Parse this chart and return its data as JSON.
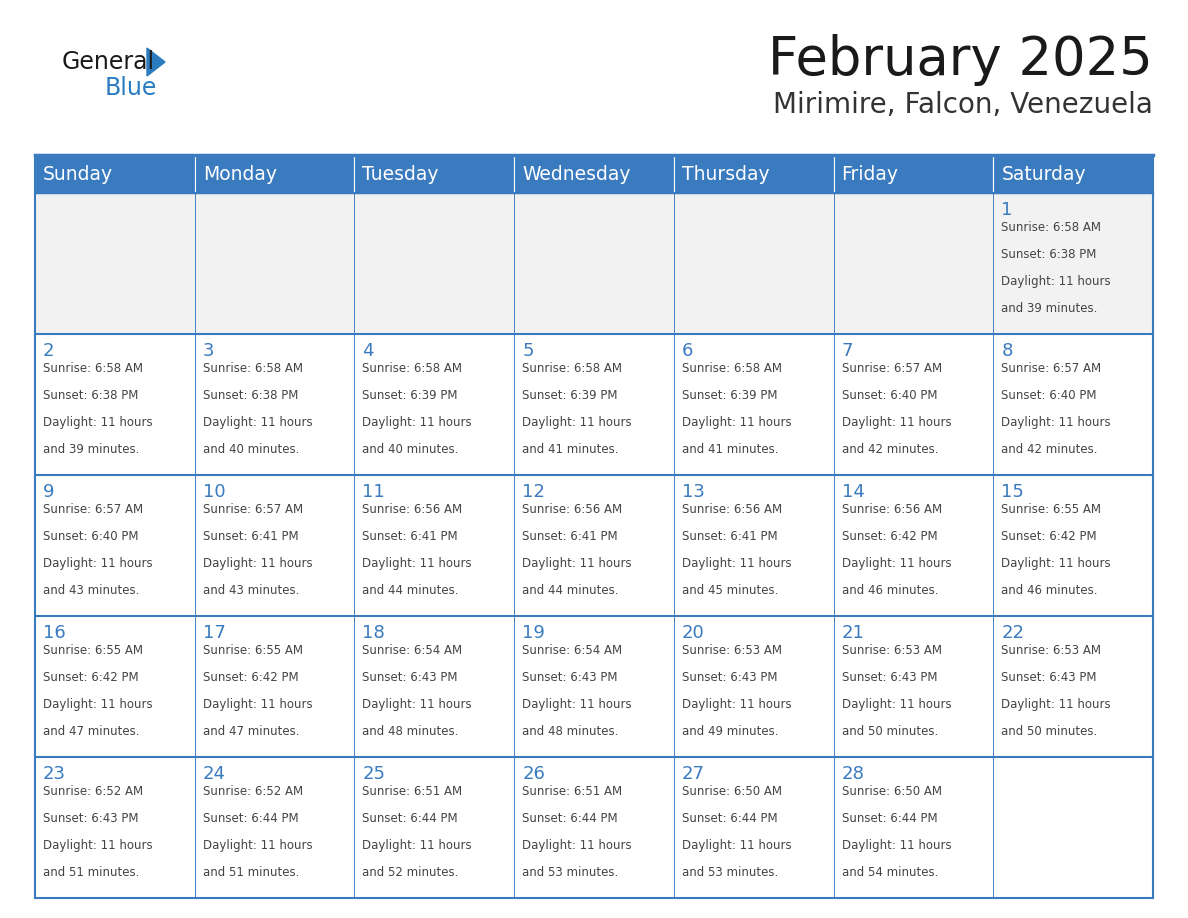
{
  "title": "February 2025",
  "subtitle": "Mirimire, Falcon, Venezuela",
  "days_of_week": [
    "Sunday",
    "Monday",
    "Tuesday",
    "Wednesday",
    "Thursday",
    "Friday",
    "Saturday"
  ],
  "header_bg": "#3a7bbf",
  "header_text": "#ffffff",
  "cell_bg_white": "#ffffff",
  "cell_bg_gray": "#f2f2f2",
  "border_color": "#3a7bbf",
  "day_number_color": "#3a7bbf",
  "text_color": "#444444",
  "title_color": "#1a1a1a",
  "subtitle_color": "#333333",
  "logo_general_color": "#1a1a1a",
  "logo_blue_color": "#2a7bbf",
  "calendar_data": [
    [
      null,
      null,
      null,
      null,
      null,
      null,
      {
        "day": 1,
        "sunrise": "6:58 AM",
        "sunset": "6:38 PM",
        "daylight": "11 hours and 39 minutes."
      }
    ],
    [
      {
        "day": 2,
        "sunrise": "6:58 AM",
        "sunset": "6:38 PM",
        "daylight": "11 hours and 39 minutes."
      },
      {
        "day": 3,
        "sunrise": "6:58 AM",
        "sunset": "6:38 PM",
        "daylight": "11 hours and 40 minutes."
      },
      {
        "day": 4,
        "sunrise": "6:58 AM",
        "sunset": "6:39 PM",
        "daylight": "11 hours and 40 minutes."
      },
      {
        "day": 5,
        "sunrise": "6:58 AM",
        "sunset": "6:39 PM",
        "daylight": "11 hours and 41 minutes."
      },
      {
        "day": 6,
        "sunrise": "6:58 AM",
        "sunset": "6:39 PM",
        "daylight": "11 hours and 41 minutes."
      },
      {
        "day": 7,
        "sunrise": "6:57 AM",
        "sunset": "6:40 PM",
        "daylight": "11 hours and 42 minutes."
      },
      {
        "day": 8,
        "sunrise": "6:57 AM",
        "sunset": "6:40 PM",
        "daylight": "11 hours and 42 minutes."
      }
    ],
    [
      {
        "day": 9,
        "sunrise": "6:57 AM",
        "sunset": "6:40 PM",
        "daylight": "11 hours and 43 minutes."
      },
      {
        "day": 10,
        "sunrise": "6:57 AM",
        "sunset": "6:41 PM",
        "daylight": "11 hours and 43 minutes."
      },
      {
        "day": 11,
        "sunrise": "6:56 AM",
        "sunset": "6:41 PM",
        "daylight": "11 hours and 44 minutes."
      },
      {
        "day": 12,
        "sunrise": "6:56 AM",
        "sunset": "6:41 PM",
        "daylight": "11 hours and 44 minutes."
      },
      {
        "day": 13,
        "sunrise": "6:56 AM",
        "sunset": "6:41 PM",
        "daylight": "11 hours and 45 minutes."
      },
      {
        "day": 14,
        "sunrise": "6:56 AM",
        "sunset": "6:42 PM",
        "daylight": "11 hours and 46 minutes."
      },
      {
        "day": 15,
        "sunrise": "6:55 AM",
        "sunset": "6:42 PM",
        "daylight": "11 hours and 46 minutes."
      }
    ],
    [
      {
        "day": 16,
        "sunrise": "6:55 AM",
        "sunset": "6:42 PM",
        "daylight": "11 hours and 47 minutes."
      },
      {
        "day": 17,
        "sunrise": "6:55 AM",
        "sunset": "6:42 PM",
        "daylight": "11 hours and 47 minutes."
      },
      {
        "day": 18,
        "sunrise": "6:54 AM",
        "sunset": "6:43 PM",
        "daylight": "11 hours and 48 minutes."
      },
      {
        "day": 19,
        "sunrise": "6:54 AM",
        "sunset": "6:43 PM",
        "daylight": "11 hours and 48 minutes."
      },
      {
        "day": 20,
        "sunrise": "6:53 AM",
        "sunset": "6:43 PM",
        "daylight": "11 hours and 49 minutes."
      },
      {
        "day": 21,
        "sunrise": "6:53 AM",
        "sunset": "6:43 PM",
        "daylight": "11 hours and 50 minutes."
      },
      {
        "day": 22,
        "sunrise": "6:53 AM",
        "sunset": "6:43 PM",
        "daylight": "11 hours and 50 minutes."
      }
    ],
    [
      {
        "day": 23,
        "sunrise": "6:52 AM",
        "sunset": "6:43 PM",
        "daylight": "11 hours and 51 minutes."
      },
      {
        "day": 24,
        "sunrise": "6:52 AM",
        "sunset": "6:44 PM",
        "daylight": "11 hours and 51 minutes."
      },
      {
        "day": 25,
        "sunrise": "6:51 AM",
        "sunset": "6:44 PM",
        "daylight": "11 hours and 52 minutes."
      },
      {
        "day": 26,
        "sunrise": "6:51 AM",
        "sunset": "6:44 PM",
        "daylight": "11 hours and 53 minutes."
      },
      {
        "day": 27,
        "sunrise": "6:50 AM",
        "sunset": "6:44 PM",
        "daylight": "11 hours and 53 minutes."
      },
      {
        "day": 28,
        "sunrise": "6:50 AM",
        "sunset": "6:44 PM",
        "daylight": "11 hours and 54 minutes."
      },
      null
    ]
  ]
}
